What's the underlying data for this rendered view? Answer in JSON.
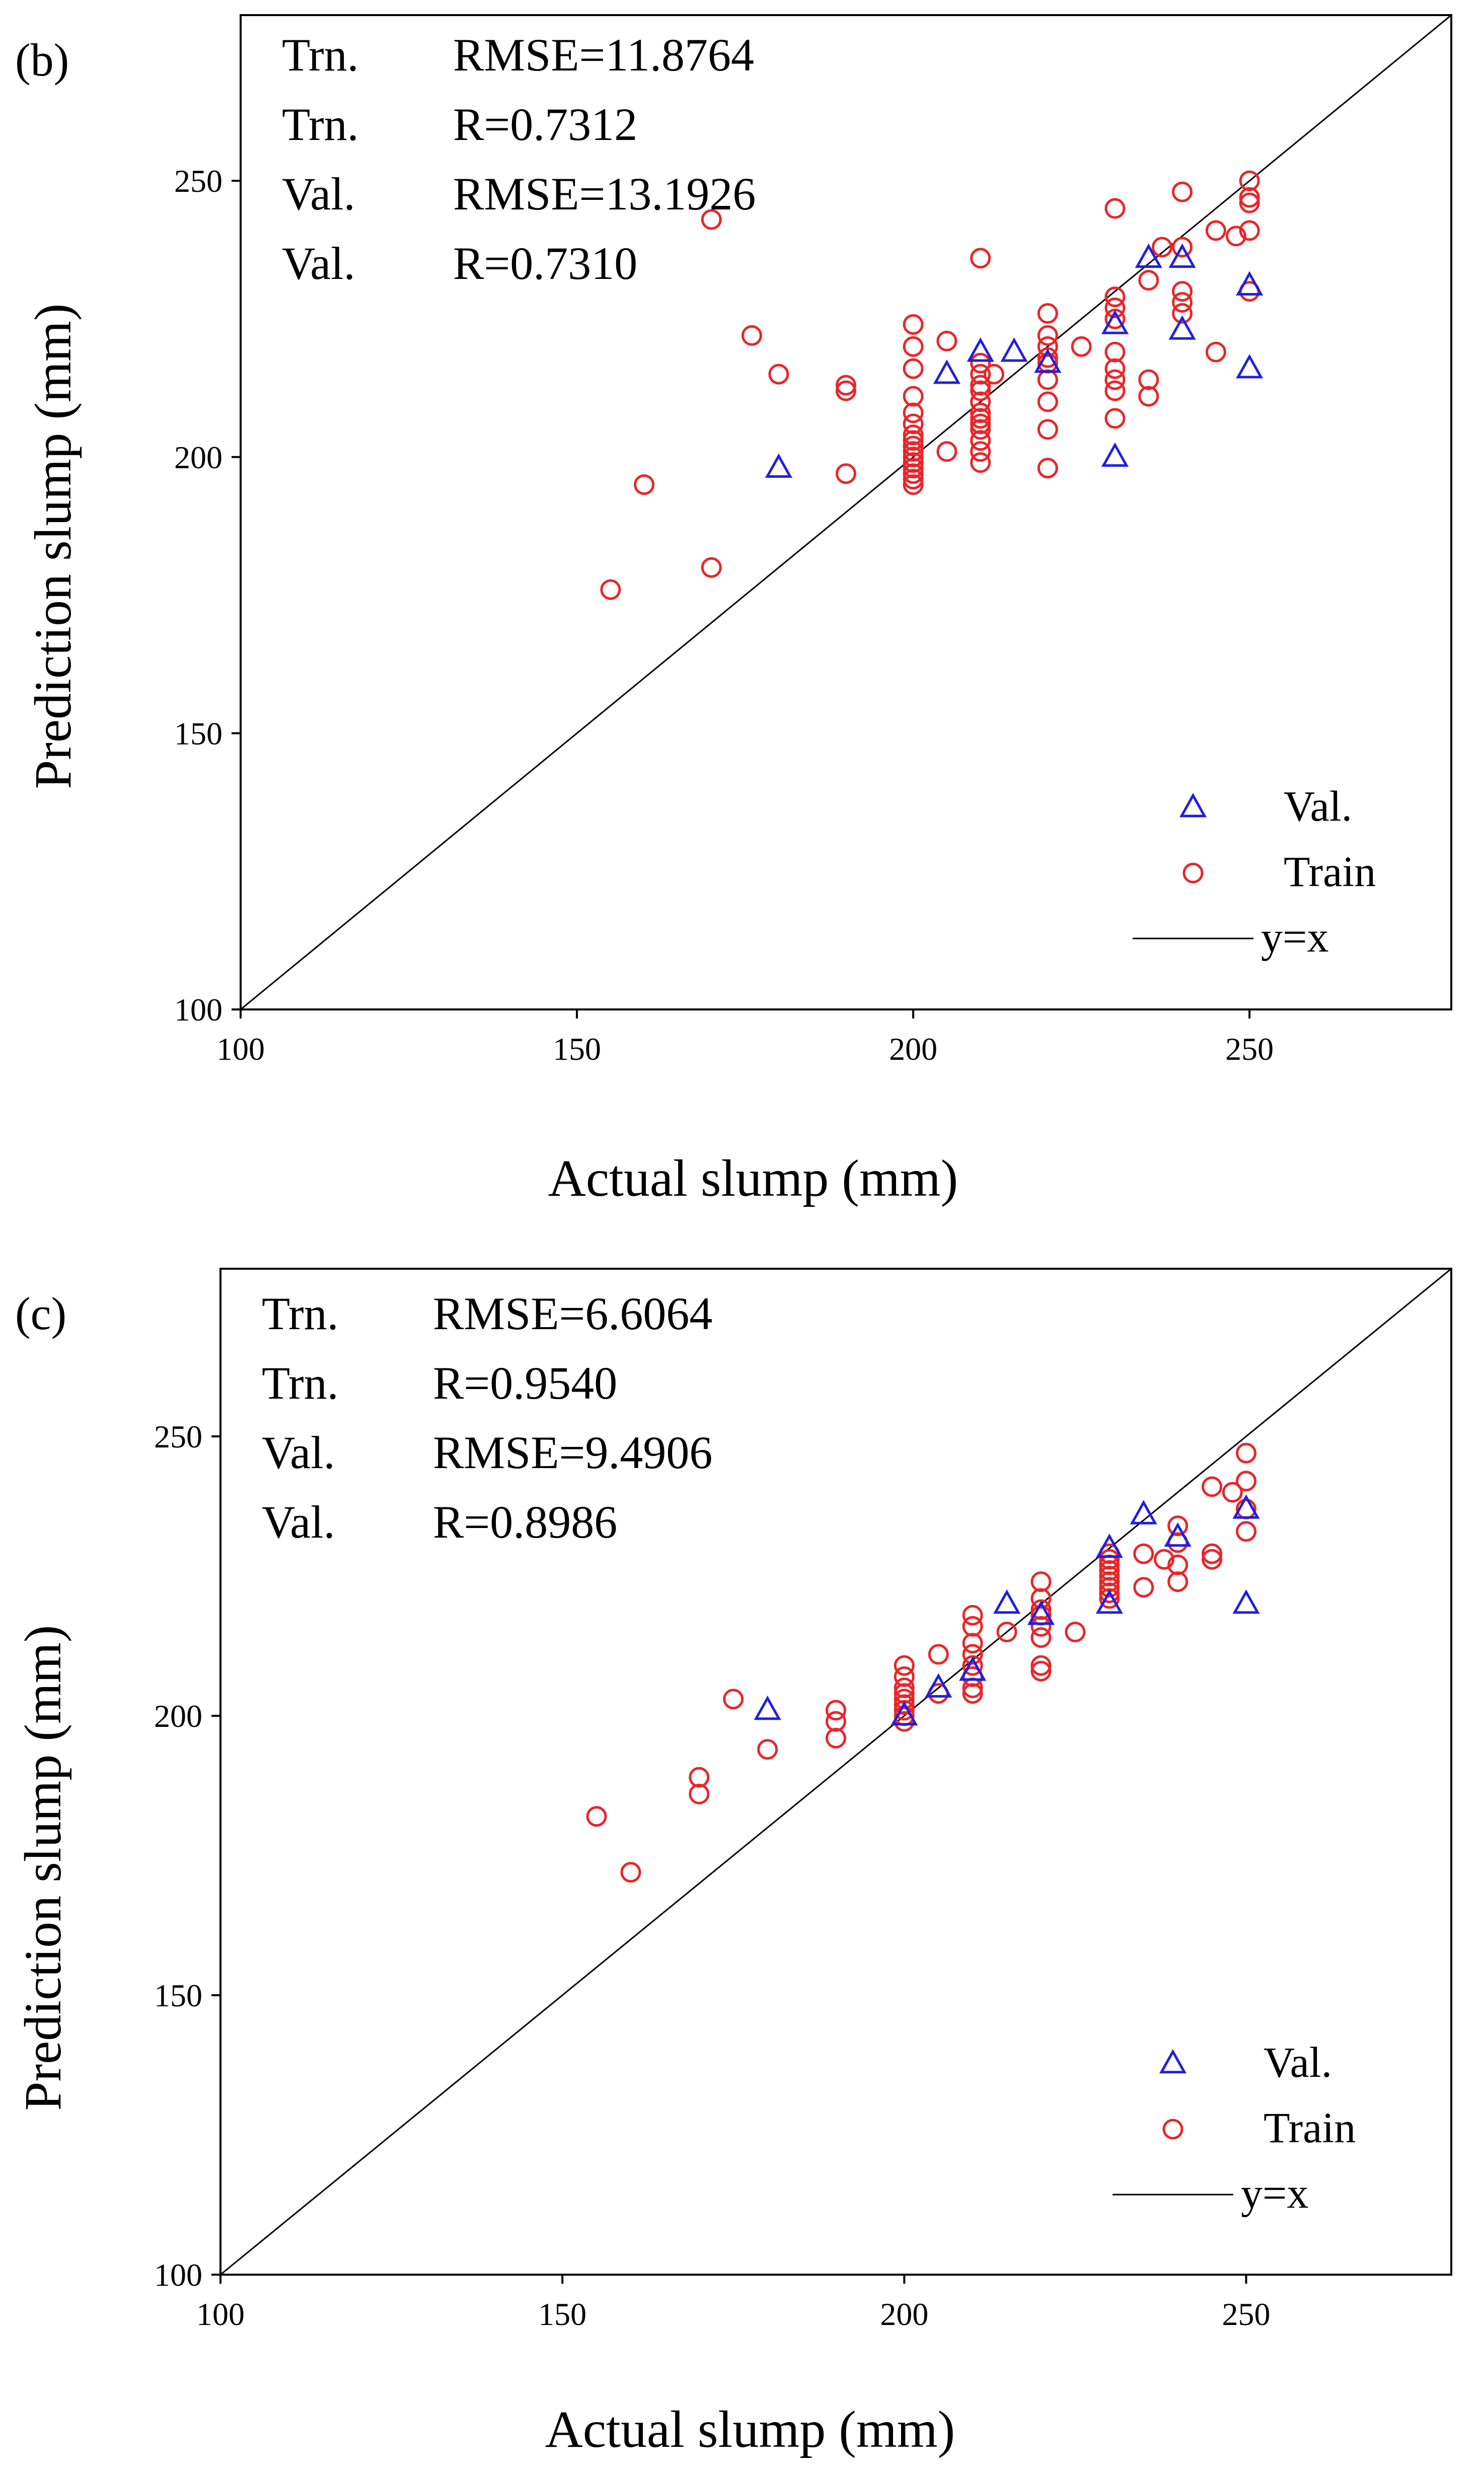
{
  "chart_data": [
    {
      "type": "scatter",
      "panel_label": "(b)",
      "title": "",
      "xlabel": "Actual slump (mm)",
      "ylabel": "Prediction slump (mm)",
      "xlim": [
        100,
        280
      ],
      "ylim": [
        100,
        280
      ],
      "xticks": [
        100,
        150,
        200,
        250
      ],
      "yticks": [
        100,
        150,
        200,
        250
      ],
      "grid": false,
      "legend_position": "bottom-right",
      "stats": [
        {
          "set": "Trn.",
          "metric": "RMSE=11.8764"
        },
        {
          "set": "Trn.",
          "metric": "R=0.7312"
        },
        {
          "set": "Val.",
          "metric": "RMSE=13.1926"
        },
        {
          "set": "Val.",
          "metric": "R=0.7310"
        }
      ],
      "legend": [
        {
          "label": "Val.",
          "marker": "triangle",
          "color": "#1f1fe0"
        },
        {
          "label": "Train",
          "marker": "circle",
          "color": "#e8262a"
        },
        {
          "label": "y=x",
          "marker": "line",
          "color": "#000000"
        }
      ],
      "series": [
        {
          "name": "Train",
          "marker": "circle",
          "color": "#e8262a",
          "x": [
            155,
            160,
            170,
            170,
            176,
            180,
            190,
            190,
            190,
            200,
            200,
            200,
            200,
            200,
            200,
            200,
            200,
            200,
            200,
            200,
            200,
            200,
            200,
            200,
            200,
            205,
            205,
            210,
            210,
            210,
            210,
            210,
            210,
            210,
            210,
            210,
            210,
            210,
            210,
            210,
            210,
            212,
            220,
            220,
            220,
            220,
            220,
            220,
            220,
            220,
            220,
            225,
            230,
            230,
            230,
            230,
            230,
            230,
            230,
            230,
            230,
            235,
            235,
            235,
            237,
            240,
            240,
            240,
            240,
            240,
            245,
            245,
            248,
            250,
            250,
            250,
            250,
            250
          ],
          "y": [
            176,
            195,
            180,
            243,
            222,
            215,
            213,
            212,
            197,
            224,
            220,
            216,
            211,
            208,
            206,
            204,
            202,
            200,
            199,
            198,
            197,
            196,
            195,
            201,
            203,
            221,
            201,
            236,
            215,
            213,
            212,
            210,
            208,
            205,
            203,
            201,
            199,
            217,
            206,
            203,
            207,
            215,
            226,
            222,
            218,
            214,
            210,
            205,
            198,
            217,
            220,
            220,
            245,
            229,
            227,
            225,
            216,
            214,
            212,
            207,
            219,
            232,
            214,
            211,
            238,
            248,
            238,
            230,
            228,
            226,
            241,
            219,
            240,
            250,
            247,
            246,
            241,
            230
          ],
          "note": "values estimated from the plot"
        },
        {
          "name": "Val.",
          "marker": "triangle",
          "color": "#1f1fe0",
          "x": [
            180,
            205,
            210,
            215,
            220,
            230,
            230,
            235,
            240,
            240,
            250,
            250
          ],
          "y": [
            198,
            215,
            219,
            219,
            217,
            224,
            200,
            236,
            236,
            223,
            231,
            216
          ],
          "note": "values estimated from the plot"
        },
        {
          "name": "y=x",
          "type": "line",
          "color": "#000000",
          "x": [
            100,
            280
          ],
          "y": [
            100,
            280
          ]
        }
      ]
    },
    {
      "type": "scatter",
      "panel_label": "(c)",
      "title": "",
      "xlabel": "Actual slump (mm)",
      "ylabel": "Prediction slump (mm)",
      "xlim": [
        100,
        280
      ],
      "ylim": [
        100,
        280
      ],
      "xticks": [
        100,
        150,
        200,
        250
      ],
      "yticks": [
        100,
        150,
        200,
        250
      ],
      "grid": false,
      "legend_position": "bottom-right",
      "stats": [
        {
          "set": "Trn.",
          "metric": "RMSE=6.6064"
        },
        {
          "set": "Trn.",
          "metric": "R=0.9540"
        },
        {
          "set": "Val.",
          "metric": "RMSE=9.4906"
        },
        {
          "set": "Val.",
          "metric": "R=0.8986"
        }
      ],
      "legend": [
        {
          "label": "Val.",
          "marker": "triangle",
          "color": "#1f1fe0"
        },
        {
          "label": "Train",
          "marker": "circle",
          "color": "#e8262a"
        },
        {
          "label": "y=x",
          "marker": "line",
          "color": "#000000"
        }
      ],
      "series": [
        {
          "name": "Train",
          "marker": "circle",
          "color": "#e8262a",
          "x": [
            155,
            160,
            170,
            170,
            175,
            180,
            190,
            190,
            190,
            200,
            200,
            200,
            200,
            200,
            200,
            200,
            200,
            200,
            205,
            205,
            210,
            210,
            210,
            210,
            210,
            210,
            210,
            210,
            215,
            220,
            220,
            220,
            220,
            220,
            220,
            220,
            220,
            225,
            230,
            230,
            230,
            230,
            230,
            230,
            230,
            230,
            230,
            235,
            235,
            238,
            240,
            240,
            240,
            240,
            245,
            245,
            245,
            248,
            250,
            250,
            250,
            250
          ],
          "y": [
            182,
            172,
            189,
            186,
            203,
            194,
            201,
            199,
            196,
            209,
            207,
            205,
            203,
            202,
            201,
            200,
            199,
            204,
            211,
            204,
            218,
            216,
            213,
            211,
            209,
            207,
            205,
            204,
            215,
            224,
            221,
            219,
            216,
            214,
            209,
            208,
            218,
            215,
            229,
            227,
            226,
            224,
            222,
            221,
            228,
            225,
            223,
            229,
            223,
            228,
            234,
            231,
            227,
            224,
            241,
            229,
            228,
            240,
            247,
            242,
            237,
            233
          ],
          "note": "values estimated from the plot"
        },
        {
          "name": "Val.",
          "marker": "triangle",
          "color": "#1f1fe0",
          "x": [
            180,
            200,
            205,
            210,
            215,
            220,
            230,
            230,
            235,
            240,
            250,
            250
          ],
          "y": [
            201,
            200,
            205,
            208,
            220,
            218,
            230,
            220,
            236,
            232,
            237,
            220
          ],
          "note": "values estimated from the plot"
        },
        {
          "name": "y=x",
          "type": "line",
          "color": "#000000",
          "x": [
            100,
            280
          ],
          "y": [
            100,
            280
          ]
        }
      ]
    }
  ]
}
